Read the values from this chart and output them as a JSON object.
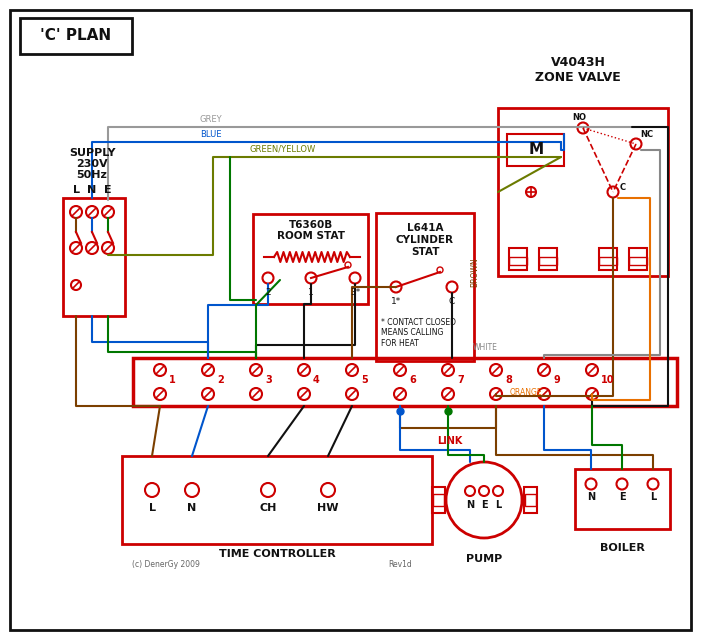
{
  "title": "'C' PLAN",
  "bg": "#ffffff",
  "red": "#cc0000",
  "blue": "#0055cc",
  "green": "#007700",
  "brown": "#7B3F00",
  "grey": "#999999",
  "orange": "#E87000",
  "black": "#111111",
  "gy": "#6B7B00",
  "zone_valve_title": "V4043H\nZONE VALVE",
  "room_stat_line1": "T6360B",
  "room_stat_line2": "ROOM STAT",
  "cyl_stat_line1": "L641A",
  "cyl_stat_line2": "CYLINDER",
  "cyl_stat_line3": "STAT",
  "terminal_nums": [
    "1",
    "2",
    "3",
    "4",
    "5",
    "6",
    "7",
    "8",
    "9",
    "10"
  ],
  "time_labels": [
    "L",
    "N",
    "CH",
    "HW"
  ],
  "nel_labels": [
    "N",
    "E",
    "L"
  ],
  "link_text": "LINK",
  "pump_text": "PUMP",
  "boiler_text": "BOILER",
  "time_ctrl_text": "TIME CONTROLLER",
  "contact_note": "* CONTACT CLOSED\nMEANS CALLING\nFOR HEAT",
  "copyright": "(c) DenerGy 2009",
  "rev_text": "Rev1d",
  "supply_line1": "SUPPLY",
  "supply_line2": "230V",
  "supply_line3": "50Hz",
  "lne": [
    "L",
    "N",
    "E"
  ],
  "grey_label": "GREY",
  "blue_label": "BLUE",
  "gy_label": "GREEN/YELLOW",
  "brown_label": "BROWN",
  "white_label": "WHITE",
  "orange_label": "ORANGE",
  "no_label": "NO",
  "nc_label": "NC",
  "c_label": "C",
  "m_label": "M"
}
